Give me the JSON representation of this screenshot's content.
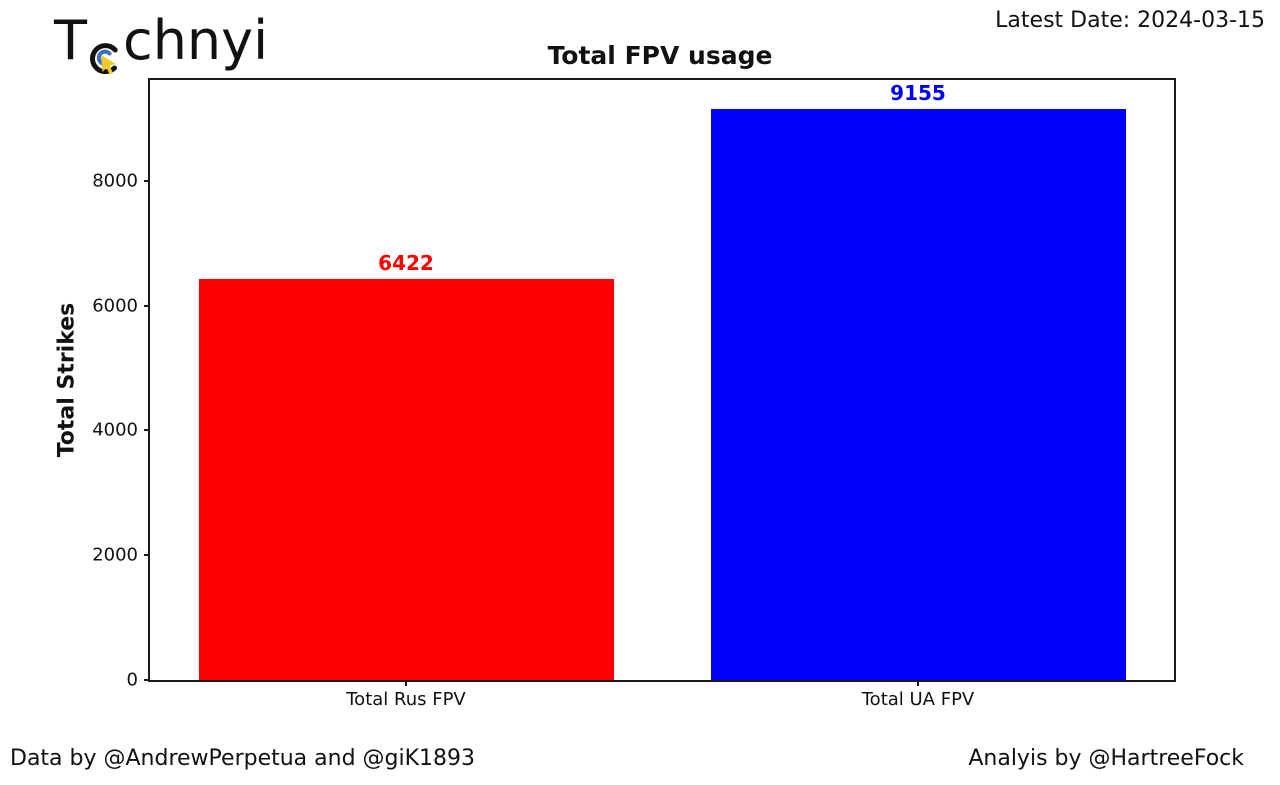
{
  "logo": {
    "prefix": "T",
    "suffix": "chnyi",
    "icon": "click-cursor-icon",
    "icon_colors": {
      "ring": "#111111",
      "arc": "#3b6fc4",
      "cursor": "#f2c928"
    }
  },
  "header": {
    "latest_date": "Latest Date: 2024-03-15"
  },
  "chart_data": {
    "type": "bar",
    "title": "Total FPV usage",
    "xlabel": "",
    "ylabel": "Total Strikes",
    "categories": [
      "Total Rus FPV",
      "Total UA FPV"
    ],
    "values": [
      6422,
      9155
    ],
    "bar_colors": [
      "#ff0000",
      "#0000ff"
    ],
    "value_label_colors": [
      "#ff0000",
      "#0000ff"
    ],
    "yticks": [
      0,
      2000,
      4000,
      6000,
      8000
    ],
    "ylim": [
      0,
      9613
    ],
    "grid": false,
    "legend": "none"
  },
  "footer": {
    "data_credit": "Data by @AndrewPerpetua and @giK1893",
    "analysis_credit": "Analyis by @HartreeFock"
  }
}
